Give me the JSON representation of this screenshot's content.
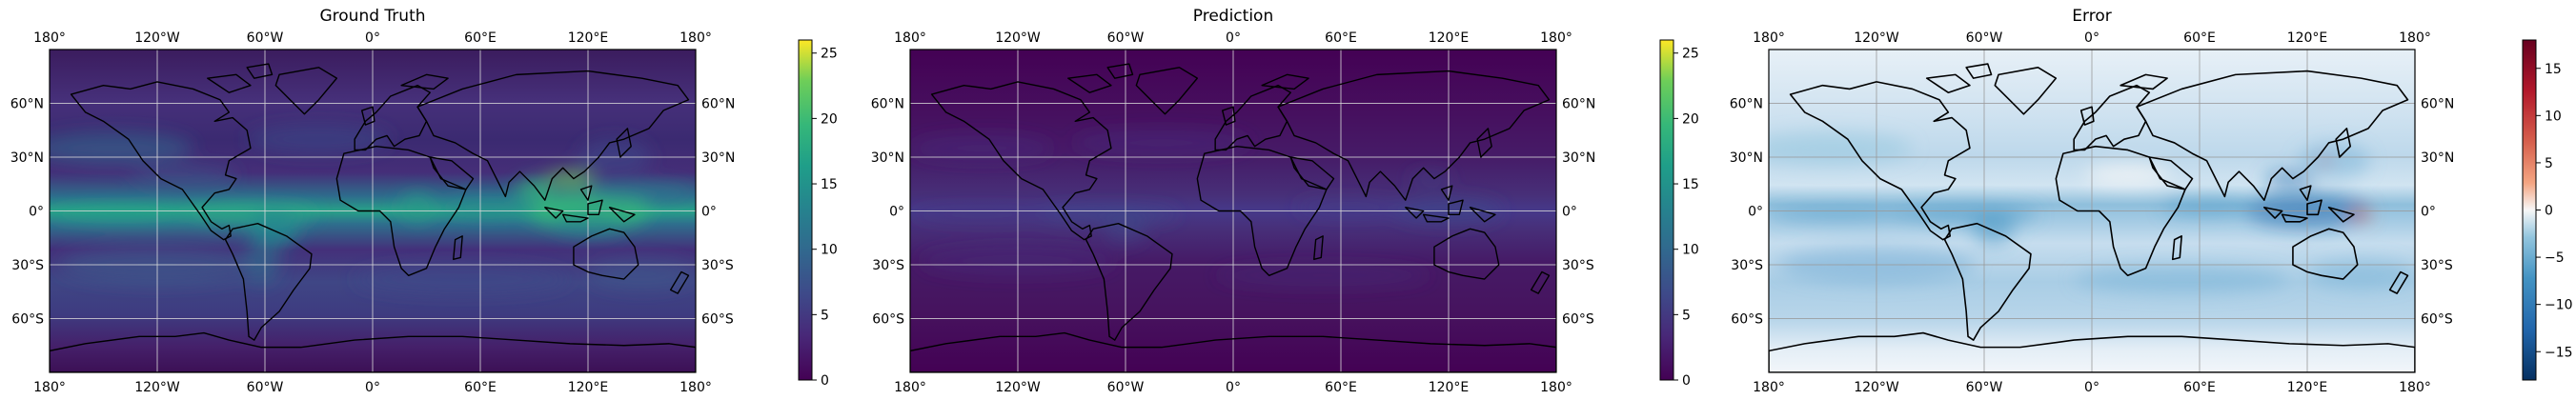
{
  "figure": {
    "panels": [
      {
        "id": "ground-truth",
        "title": "Ground Truth",
        "colormap": "viridis",
        "colorbar": {
          "ticks": [
            0,
            5,
            10,
            15,
            20,
            25
          ],
          "range": [
            0,
            26
          ]
        }
      },
      {
        "id": "prediction",
        "title": "Prediction",
        "colormap": "viridis",
        "colorbar": {
          "ticks": [
            0,
            5,
            10,
            15,
            20,
            25
          ],
          "range": [
            0,
            26
          ]
        }
      },
      {
        "id": "error",
        "title": "Error",
        "colormap": "RdBu_r",
        "colorbar": {
          "ticks": [
            15,
            10,
            5,
            0,
            -5,
            -10,
            -15
          ],
          "range": [
            -18,
            18
          ]
        }
      }
    ],
    "lon_ticks": [
      "180°",
      "120°W",
      "60°W",
      "0°",
      "60°E",
      "120°E",
      "180°"
    ],
    "lat_ticks": [
      "60°N",
      "30°N",
      "0°",
      "30°S",
      "60°S"
    ],
    "lon_values": [
      -180,
      -120,
      -60,
      0,
      60,
      120,
      180
    ],
    "lat_values": [
      60,
      30,
      0,
      -30,
      -60
    ],
    "gridlines": true,
    "coastlines": true
  },
  "colors": {
    "viridis_dark": "#440154",
    "viridis_mid": "#21918c",
    "viridis_light": "#fde725",
    "error_neutral": "#f7f7f7",
    "error_blue": "#2166ac",
    "error_red": "#b2182b"
  }
}
